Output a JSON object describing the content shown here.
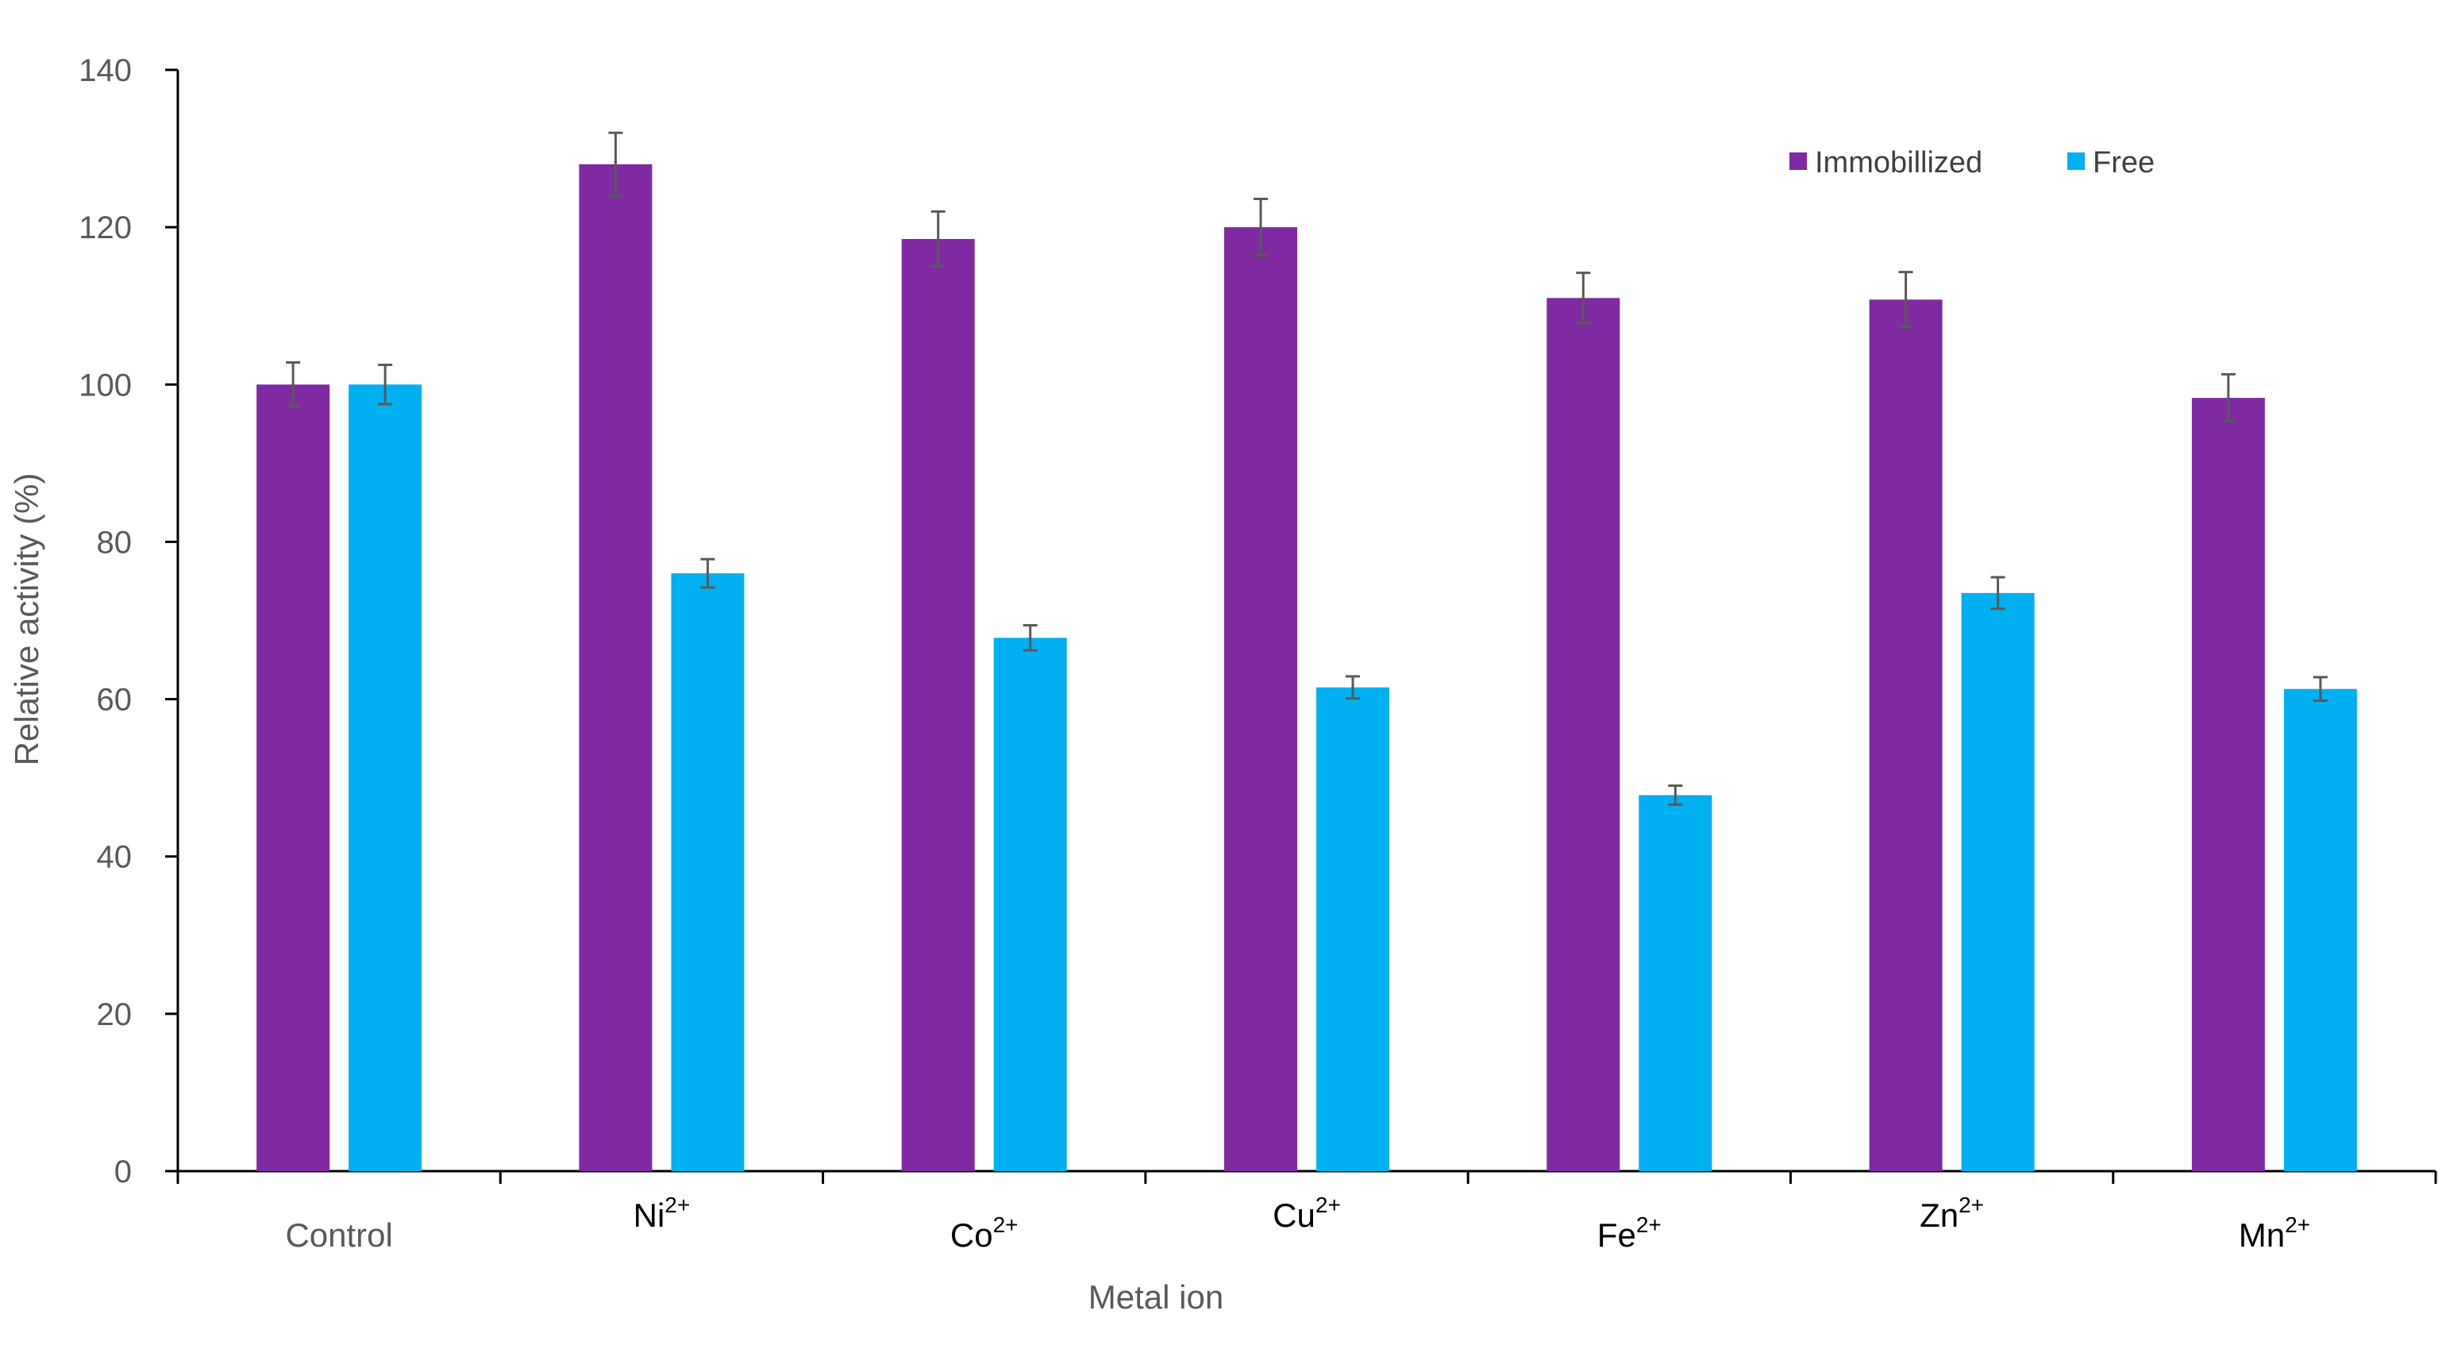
{
  "chart_data": {
    "type": "bar",
    "title": "",
    "xlabel": "Metal ion",
    "ylabel": "Relative activity (%)",
    "ylim": [
      0,
      140
    ],
    "yticks": [
      "0",
      "20",
      "40",
      "60",
      "80",
      "100",
      "120",
      "140"
    ],
    "categories": [
      {
        "base": "Control",
        "sup": ""
      },
      {
        "base": "Ni",
        "sup": "2+"
      },
      {
        "base": "Co",
        "sup": "2+"
      },
      {
        "base": "Cu",
        "sup": "2+"
      },
      {
        "base": "Fe",
        "sup": "2+"
      },
      {
        "base": "Zn",
        "sup": "2+"
      },
      {
        "base": "Mn",
        "sup": "2+"
      }
    ],
    "series": [
      {
        "name": "Immobillized",
        "color": "#7F2AA2",
        "values": [
          100,
          128,
          118.5,
          120,
          111,
          110.8,
          98.3
        ],
        "errors": [
          2.8,
          4.0,
          3.5,
          3.6,
          3.2,
          3.5,
          3.0
        ]
      },
      {
        "name": "Free",
        "color": "#00B0F0",
        "values": [
          100,
          76,
          67.8,
          61.5,
          47.8,
          73.5,
          61.3
        ],
        "errors": [
          2.5,
          1.8,
          1.6,
          1.4,
          1.2,
          2.0,
          1.5
        ]
      }
    ],
    "legend_position": "top-right",
    "grid": false
  }
}
